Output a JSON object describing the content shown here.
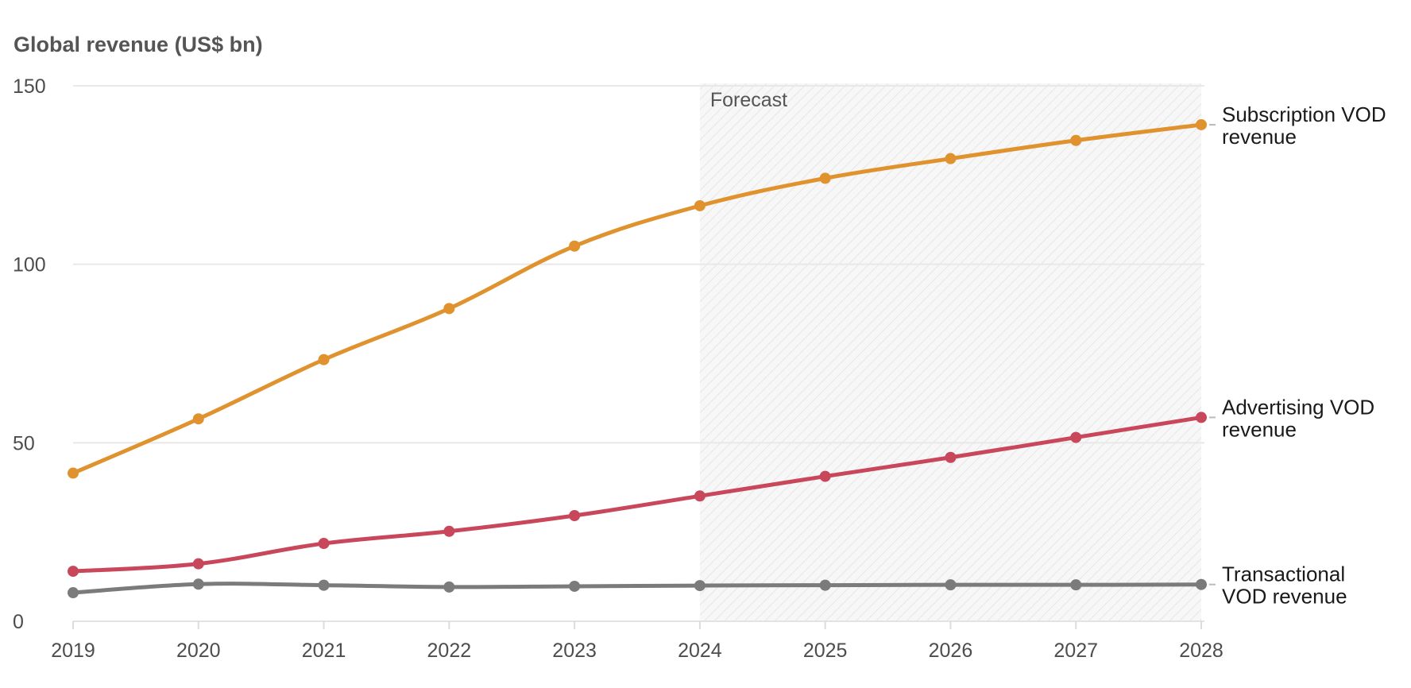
{
  "chart_data": {
    "type": "line",
    "title": "Global revenue (US$ bn)",
    "xlabel": "",
    "ylabel": "",
    "x": [
      "2019",
      "2020",
      "2021",
      "2022",
      "2023",
      "2024",
      "2025",
      "2026",
      "2027",
      "2028"
    ],
    "ylim": [
      0,
      150
    ],
    "yticks": [
      0,
      50,
      100,
      150
    ],
    "grid": true,
    "forecast": {
      "label": "Forecast",
      "start": "2024",
      "end": "2028"
    },
    "series": [
      {
        "name": "Subscription VOD revenue",
        "label_lines": [
          "Subscription VOD",
          "revenue"
        ],
        "color": "#e0922f",
        "values": [
          41.5,
          56.7,
          73.3,
          87.6,
          105.1,
          116.4,
          124.1,
          129.6,
          134.7,
          139.1
        ]
      },
      {
        "name": "Advertising VOD revenue",
        "label_lines": [
          "Advertising VOD",
          "revenue"
        ],
        "color": "#c9475b",
        "values": [
          14.0,
          16.1,
          21.8,
          25.2,
          29.6,
          35.1,
          40.6,
          45.9,
          51.5,
          57.1
        ]
      },
      {
        "name": "Transactional VOD revenue",
        "label_lines": [
          "Transactional",
          "VOD revenue"
        ],
        "color": "#7b7b7b",
        "values": [
          8.0,
          10.4,
          10.1,
          9.6,
          9.8,
          10.0,
          10.1,
          10.2,
          10.2,
          10.3
        ]
      }
    ]
  }
}
